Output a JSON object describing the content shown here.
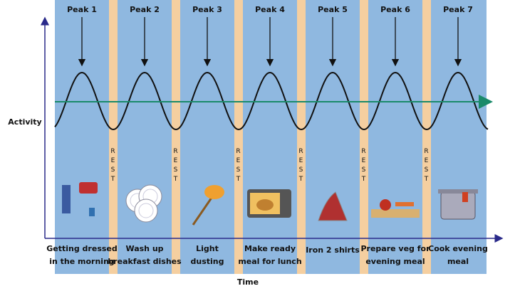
{
  "y_axis_label": "Activity",
  "x_axis_label": "Time",
  "peaks": [
    {
      "label": "Peak 1",
      "activity": [
        "Getting dressed",
        "in the morning"
      ]
    },
    {
      "label": "Peak 2",
      "activity": [
        "Wash up",
        "breakfast dishes"
      ]
    },
    {
      "label": "Peak 3",
      "activity": [
        "Light",
        "dusting"
      ]
    },
    {
      "label": "Peak 4",
      "activity": [
        "Make ready",
        "meal for lunch"
      ]
    },
    {
      "label": "Peak 5",
      "activity": [
        "Iron 2 shirts"
      ]
    },
    {
      "label": "Peak 6",
      "activity": [
        "Prepare veg for",
        "evening meal"
      ]
    },
    {
      "label": "Peak 7",
      "activity": [
        "Cook evening",
        "meal"
      ]
    }
  ],
  "rests": [
    "REST",
    "REST",
    "REST",
    "REST",
    "REST",
    "REST"
  ]
}
